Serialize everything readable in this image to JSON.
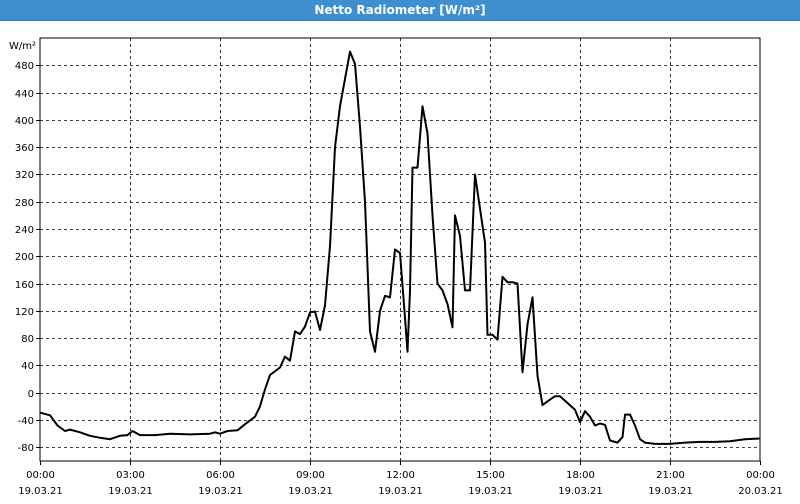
{
  "window": {
    "title": "Netto Radiometer [W/m²]"
  },
  "chart_data": {
    "type": "line",
    "title": "Netto Radiometer [W/m²]",
    "unit_label": "W/m²",
    "xlabel": "",
    "ylabel": "W/m²",
    "ylim": [
      -100,
      520
    ],
    "xlim_hours": [
      0,
      24
    ],
    "grid": true,
    "y_ticks": [
      480,
      440,
      400,
      360,
      320,
      280,
      240,
      200,
      160,
      120,
      80,
      40,
      0,
      -40,
      -80
    ],
    "x_ticks": [
      {
        "time": "00:00",
        "date": "19.03.21"
      },
      {
        "time": "03:00",
        "date": "19.03.21"
      },
      {
        "time": "06:00",
        "date": "19.03.21"
      },
      {
        "time": "09:00",
        "date": "19.03.21"
      },
      {
        "time": "12:00",
        "date": "19.03.21"
      },
      {
        "time": "15:00",
        "date": "19.03.21"
      },
      {
        "time": "18:00",
        "date": "19.03.21"
      },
      {
        "time": "21:00",
        "date": "19.03.21"
      },
      {
        "time": "00:00",
        "date": "20.03.21"
      }
    ],
    "series": [
      {
        "name": "",
        "color": "#000000",
        "points": [
          [
            "19.03.21 00:00",
            -29
          ],
          [
            "19.03.21 00:20",
            -33
          ],
          [
            "19.03.21 00:35",
            -48
          ],
          [
            "19.03.21 00:50",
            -56
          ],
          [
            "19.03.21 01:00",
            -54
          ],
          [
            "19.03.21 01:20",
            -58
          ],
          [
            "19.03.21 01:40",
            -63
          ],
          [
            "19.03.21 02:00",
            -66
          ],
          [
            "19.03.21 02:20",
            -68
          ],
          [
            "19.03.21 02:40",
            -63
          ],
          [
            "19.03.21 02:55",
            -62
          ],
          [
            "19.03.21 03:05",
            -56
          ],
          [
            "19.03.21 03:20",
            -62
          ],
          [
            "19.03.21 03:50",
            -62
          ],
          [
            "19.03.21 04:20",
            -60
          ],
          [
            "19.03.21 05:00",
            -61
          ],
          [
            "19.03.21 05:40",
            -60
          ],
          [
            "19.03.21 05:50",
            -58
          ],
          [
            "19.03.21 06:00",
            -60
          ],
          [
            "19.03.21 06:15",
            -56
          ],
          [
            "19.03.21 06:35",
            -55
          ],
          [
            "19.03.21 06:50",
            -46
          ],
          [
            "19.03.21 07:10",
            -35
          ],
          [
            "19.03.21 07:20",
            -20
          ],
          [
            "19.03.21 07:30",
            5
          ],
          [
            "19.03.21 07:40",
            26
          ],
          [
            "19.03.21 08:00",
            37
          ],
          [
            "19.03.21 08:10",
            53
          ],
          [
            "19.03.21 08:20",
            47
          ],
          [
            "19.03.21 08:30",
            90
          ],
          [
            "19.03.21 08:40",
            86
          ],
          [
            "19.03.21 08:50",
            97
          ],
          [
            "19.03.21 09:00",
            118
          ],
          [
            "19.03.21 09:10",
            119
          ],
          [
            "19.03.21 09:20",
            92
          ],
          [
            "19.03.21 09:30",
            128
          ],
          [
            "19.03.21 09:40",
            215
          ],
          [
            "19.03.21 09:50",
            360
          ],
          [
            "19.03.21 10:00",
            420
          ],
          [
            "19.03.21 10:10",
            460
          ],
          [
            "19.03.21 10:20",
            500
          ],
          [
            "19.03.21 10:30",
            482
          ],
          [
            "19.03.21 10:40",
            390
          ],
          [
            "19.03.21 10:50",
            280
          ],
          [
            "19.03.21 11:00",
            90
          ],
          [
            "19.03.21 11:10",
            60
          ],
          [
            "19.03.21 11:20",
            120
          ],
          [
            "19.03.21 11:30",
            142
          ],
          [
            "19.03.21 11:40",
            140
          ],
          [
            "19.03.21 11:50",
            210
          ],
          [
            "19.03.21 12:00",
            205
          ],
          [
            "19.03.21 12:10",
            110
          ],
          [
            "19.03.21 12:15",
            60
          ],
          [
            "19.03.21 12:20",
            150
          ],
          [
            "19.03.21 12:25",
            330
          ],
          [
            "19.03.21 12:35",
            330
          ],
          [
            "19.03.21 12:45",
            420
          ],
          [
            "19.03.21 12:55",
            380
          ],
          [
            "19.03.21 13:05",
            260
          ],
          [
            "19.03.21 13:15",
            160
          ],
          [
            "19.03.21 13:25",
            150
          ],
          [
            "19.03.21 13:35",
            130
          ],
          [
            "19.03.21 13:45",
            96
          ],
          [
            "19.03.21 13:50",
            260
          ],
          [
            "19.03.21 14:00",
            230
          ],
          [
            "19.03.21 14:10",
            150
          ],
          [
            "19.03.21 14:20",
            150
          ],
          [
            "19.03.21 14:30",
            320
          ],
          [
            "19.03.21 14:40",
            270
          ],
          [
            "19.03.21 14:50",
            220
          ],
          [
            "19.03.21 14:55",
            85
          ],
          [
            "19.03.21 15:05",
            85
          ],
          [
            "19.03.21 15:15",
            78
          ],
          [
            "19.03.21 15:25",
            170
          ],
          [
            "19.03.21 15:35",
            162
          ],
          [
            "19.03.21 15:45",
            162
          ],
          [
            "19.03.21 15:55",
            160
          ],
          [
            "19.03.21 16:05",
            30
          ],
          [
            "19.03.21 16:15",
            100
          ],
          [
            "19.03.21 16:25",
            140
          ],
          [
            "19.03.21 16:35",
            25
          ],
          [
            "19.03.21 16:45",
            -18
          ],
          [
            "19.03.21 17:00",
            -10
          ],
          [
            "19.03.21 17:10",
            -5
          ],
          [
            "19.03.21 17:20",
            -5
          ],
          [
            "19.03.21 17:35",
            -15
          ],
          [
            "19.03.21 17:50",
            -25
          ],
          [
            "19.03.21 18:00",
            -43
          ],
          [
            "19.03.21 18:10",
            -27
          ],
          [
            "19.03.21 18:20",
            -35
          ],
          [
            "19.03.21 18:30",
            -48
          ],
          [
            "19.03.21 18:40",
            -45
          ],
          [
            "19.03.21 18:50",
            -47
          ],
          [
            "19.03.21 19:00",
            -70
          ],
          [
            "19.03.21 19:15",
            -73
          ],
          [
            "19.03.21 19:25",
            -65
          ],
          [
            "19.03.21 19:30",
            -32
          ],
          [
            "19.03.21 19:40",
            -32
          ],
          [
            "19.03.21 19:50",
            -48
          ],
          [
            "19.03.21 20:00",
            -68
          ],
          [
            "19.03.21 20:10",
            -73
          ],
          [
            "19.03.21 20:30",
            -75
          ],
          [
            "19.03.21 21:00",
            -75
          ],
          [
            "19.03.21 21:30",
            -73
          ],
          [
            "19.03.21 22:00",
            -72
          ],
          [
            "19.03.21 22:30",
            -72
          ],
          [
            "19.03.21 23:00",
            -71
          ],
          [
            "19.03.21 23:30",
            -68
          ],
          [
            "20.03.21 00:00",
            -67
          ]
        ]
      }
    ]
  }
}
